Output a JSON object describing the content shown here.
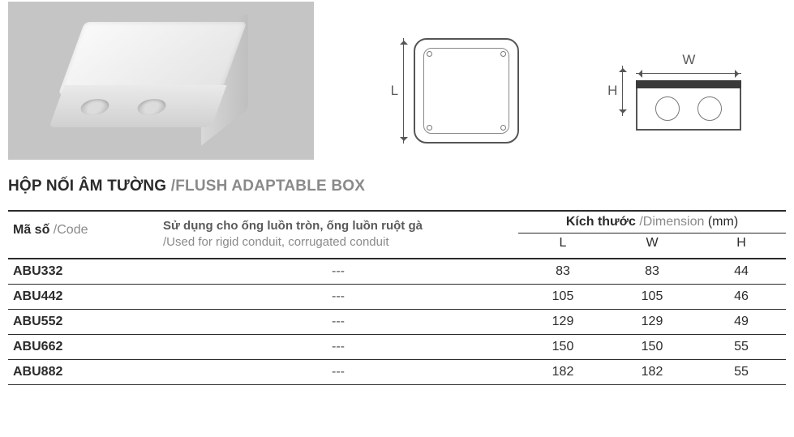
{
  "title": {
    "vi": "HỘP NỐI ÂM TƯỜNG",
    "en": "FLUSH ADAPTABLE BOX"
  },
  "diagrams": {
    "L_label": "L",
    "W_label": "W",
    "H_label": "H"
  },
  "table": {
    "headers": {
      "code_vi": "Mã số",
      "code_en": "/Code",
      "use_vi": "Sử dụng cho ống luồn tròn, ống luồn ruột gà",
      "use_en": "/Used for rigid conduit, corrugated conduit",
      "dim_vi": "Kích thước",
      "dim_en": "/Dimension",
      "dim_unit": "(mm)",
      "L": "L",
      "W": "W",
      "H": "H"
    },
    "rows": [
      {
        "code": "ABU332",
        "use": "---",
        "L": "83",
        "W": "83",
        "H": "44"
      },
      {
        "code": "ABU442",
        "use": "---",
        "L": "105",
        "W": "105",
        "H": "46"
      },
      {
        "code": "ABU552",
        "use": "---",
        "L": "129",
        "W": "129",
        "H": "49"
      },
      {
        "code": "ABU662",
        "use": "---",
        "L": "150",
        "W": "150",
        "H": "55"
      },
      {
        "code": "ABU882",
        "use": "---",
        "L": "182",
        "W": "182",
        "H": "55"
      }
    ]
  },
  "colors": {
    "text": "#2b2b2b",
    "grey_text": "#8a8a8a",
    "photo_bg": "#c5c5c5",
    "rule": "#2b2b2b"
  }
}
